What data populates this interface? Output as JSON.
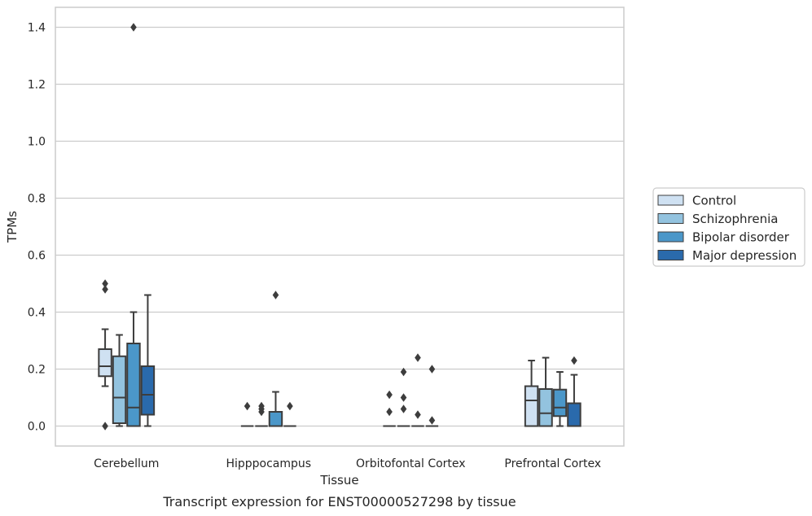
{
  "chart_data": {
    "type": "box",
    "xlabel": "Tissue",
    "ylabel": "TPMs",
    "caption": "Transcript expression for ENST00000527298 by tissue",
    "ylim": [
      -0.07,
      1.47
    ],
    "yticks": [
      "0.0",
      "0.2",
      "0.4",
      "0.6",
      "0.8",
      "1.0",
      "1.2",
      "1.4"
    ],
    "grid": "horizontal",
    "legend_position": "right",
    "categories": [
      "Cerebellum",
      "Hipppocampus",
      "Orbitofontal Cortex",
      "Prefrontal Cortex"
    ],
    "series": [
      {
        "name": "Control",
        "color": "#cfe1f2",
        "boxes": [
          {
            "whislo": 0.14,
            "q1": 0.175,
            "med": 0.21,
            "q3": 0.27,
            "whishi": 0.34,
            "fliers": [
              0.5,
              0.48,
              0.0
            ]
          },
          {
            "whislo": 0.0,
            "q1": 0.0,
            "med": 0.0,
            "q3": 0.0,
            "whishi": 0.0,
            "fliers": [
              0.07
            ]
          },
          {
            "whislo": 0.0,
            "q1": 0.0,
            "med": 0.0,
            "q3": 0.0,
            "whishi": 0.0,
            "fliers": [
              0.11,
              0.05
            ]
          },
          {
            "whislo": 0.0,
            "q1": 0.0,
            "med": 0.09,
            "q3": 0.14,
            "whishi": 0.23,
            "fliers": []
          }
        ]
      },
      {
        "name": "Schizophrenia",
        "color": "#93c3df",
        "boxes": [
          {
            "whislo": 0.0,
            "q1": 0.01,
            "med": 0.1,
            "q3": 0.245,
            "whishi": 0.32,
            "fliers": []
          },
          {
            "whislo": 0.0,
            "q1": 0.0,
            "med": 0.0,
            "q3": 0.0,
            "whishi": 0.0,
            "fliers": [
              0.07,
              0.06,
              0.05
            ]
          },
          {
            "whislo": 0.0,
            "q1": 0.0,
            "med": 0.0,
            "q3": 0.0,
            "whishi": 0.0,
            "fliers": [
              0.19,
              0.1,
              0.06
            ]
          },
          {
            "whislo": 0.0,
            "q1": 0.0,
            "med": 0.045,
            "q3": 0.13,
            "whishi": 0.24,
            "fliers": []
          }
        ]
      },
      {
        "name": "Bipolar disorder",
        "color": "#4b97c9",
        "boxes": [
          {
            "whislo": 0.0,
            "q1": 0.0,
            "med": 0.065,
            "q3": 0.29,
            "whishi": 0.4,
            "fliers": [
              1.4
            ]
          },
          {
            "whislo": 0.0,
            "q1": 0.0,
            "med": 0.0,
            "q3": 0.05,
            "whishi": 0.12,
            "fliers": [
              0.46
            ]
          },
          {
            "whislo": 0.0,
            "q1": 0.0,
            "med": 0.0,
            "q3": 0.0,
            "whishi": 0.0,
            "fliers": [
              0.24,
              0.04
            ]
          },
          {
            "whislo": 0.0,
            "q1": 0.035,
            "med": 0.065,
            "q3": 0.128,
            "whishi": 0.19,
            "fliers": []
          }
        ]
      },
      {
        "name": "Major depression",
        "color": "#2a6aac",
        "boxes": [
          {
            "whislo": 0.0,
            "q1": 0.04,
            "med": 0.11,
            "q3": 0.21,
            "whishi": 0.46,
            "fliers": []
          },
          {
            "whislo": 0.0,
            "q1": 0.0,
            "med": 0.0,
            "q3": 0.0,
            "whishi": 0.0,
            "fliers": [
              0.07
            ]
          },
          {
            "whislo": 0.0,
            "q1": 0.0,
            "med": 0.0,
            "q3": 0.0,
            "whishi": 0.0,
            "fliers": [
              0.2,
              0.02
            ]
          },
          {
            "whislo": 0.0,
            "q1": 0.0,
            "med": 0.0,
            "q3": 0.08,
            "whishi": 0.18,
            "fliers": [
              0.23
            ]
          }
        ]
      }
    ]
  }
}
